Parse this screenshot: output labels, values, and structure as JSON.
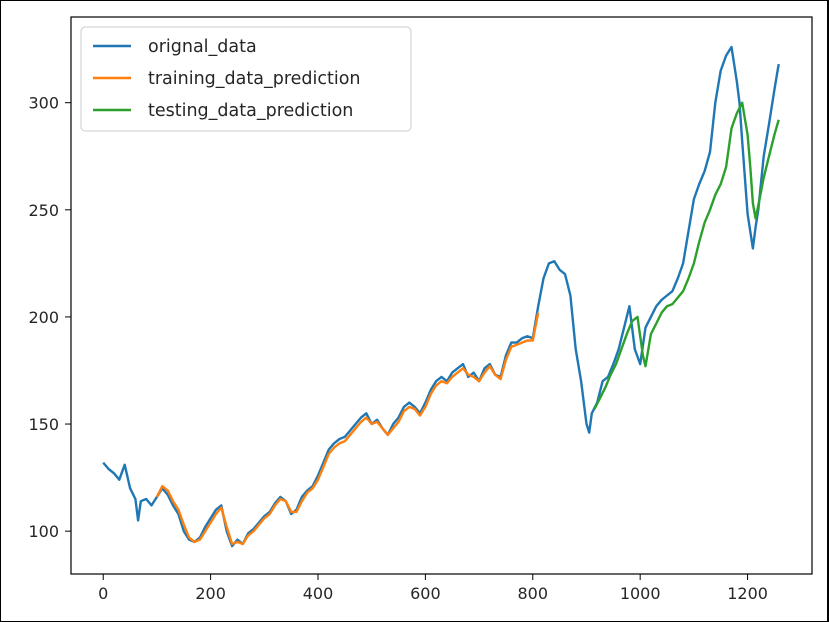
{
  "chart_data": {
    "type": "line",
    "title": "",
    "xlabel": "",
    "ylabel": "",
    "xlim": [
      -60,
      1320
    ],
    "ylim": [
      80,
      340
    ],
    "xticks": [
      0,
      200,
      400,
      600,
      800,
      1000,
      1200
    ],
    "yticks": [
      100,
      150,
      200,
      250,
      300
    ],
    "grid": false,
    "legend_position": "top-left",
    "series": [
      {
        "name": "orignal_data",
        "color": "#1f77b4",
        "x": [
          0,
          10,
          20,
          30,
          40,
          50,
          60,
          65,
          70,
          80,
          90,
          100,
          110,
          120,
          130,
          140,
          150,
          160,
          170,
          180,
          190,
          200,
          210,
          220,
          230,
          240,
          250,
          260,
          270,
          280,
          290,
          300,
          310,
          320,
          330,
          340,
          350,
          360,
          370,
          380,
          390,
          400,
          410,
          420,
          430,
          440,
          450,
          460,
          470,
          480,
          490,
          500,
          510,
          520,
          530,
          540,
          550,
          560,
          570,
          580,
          590,
          600,
          610,
          620,
          630,
          640,
          650,
          660,
          670,
          680,
          690,
          700,
          710,
          720,
          730,
          740,
          750,
          760,
          770,
          780,
          790,
          800,
          810,
          820,
          830,
          840,
          850,
          860,
          870,
          880,
          890,
          900,
          905,
          910,
          920,
          930,
          940,
          950,
          960,
          970,
          980,
          990,
          1000,
          1010,
          1020,
          1030,
          1040,
          1050,
          1060,
          1070,
          1080,
          1090,
          1100,
          1110,
          1120,
          1130,
          1140,
          1150,
          1160,
          1170,
          1180,
          1185,
          1190,
          1200,
          1210,
          1215,
          1220,
          1230,
          1240,
          1250,
          1258
        ],
        "y": [
          132,
          129,
          127,
          124,
          131,
          120,
          115,
          105,
          114,
          115,
          112,
          116,
          120,
          117,
          112,
          108,
          100,
          96,
          95,
          97,
          102,
          106,
          110,
          112,
          100,
          93,
          96,
          94,
          99,
          101,
          104,
          107,
          109,
          113,
          116,
          114,
          108,
          110,
          116,
          119,
          121,
          126,
          132,
          138,
          141,
          143,
          144,
          147,
          150,
          153,
          155,
          150,
          152,
          148,
          145,
          150,
          153,
          158,
          160,
          158,
          155,
          160,
          166,
          170,
          172,
          170,
          174,
          176,
          178,
          172,
          174,
          170,
          176,
          178,
          173,
          172,
          182,
          188,
          188,
          190,
          191,
          190,
          205,
          218,
          225,
          226,
          222,
          220,
          210,
          185,
          170,
          150,
          146,
          155,
          160,
          170,
          172,
          178,
          185,
          195,
          205,
          185,
          178,
          195,
          200,
          205,
          208,
          210,
          212,
          218,
          225,
          240,
          255,
          262,
          268,
          277,
          300,
          315,
          322,
          326,
          310,
          300,
          282,
          248,
          232,
          242,
          250,
          275,
          290,
          306,
          318
        ]
      },
      {
        "name": "training_data_prediction",
        "color": "#ff7f0e",
        "x": [
          100,
          110,
          120,
          130,
          140,
          150,
          160,
          170,
          180,
          190,
          200,
          210,
          220,
          230,
          240,
          250,
          260,
          270,
          280,
          290,
          300,
          310,
          320,
          330,
          340,
          350,
          360,
          370,
          380,
          390,
          400,
          410,
          420,
          430,
          440,
          450,
          460,
          470,
          480,
          490,
          500,
          510,
          520,
          530,
          540,
          550,
          560,
          570,
          580,
          590,
          600,
          610,
          620,
          630,
          640,
          650,
          660,
          670,
          680,
          690,
          700,
          710,
          720,
          730,
          740,
          750,
          760,
          770,
          780,
          790,
          800,
          810
        ],
        "y": [
          116,
          121,
          119,
          114,
          110,
          103,
          97,
          95,
          96,
          100,
          104,
          108,
          111,
          102,
          94,
          95,
          94,
          98,
          100,
          103,
          106,
          108,
          112,
          115,
          114,
          109,
          109,
          114,
          118,
          120,
          124,
          130,
          136,
          139,
          141,
          142,
          145,
          148,
          151,
          153,
          150,
          151,
          148,
          145,
          148,
          151,
          156,
          158,
          157,
          154,
          158,
          164,
          168,
          170,
          169,
          172,
          174,
          176,
          173,
          172,
          170,
          174,
          177,
          173,
          171,
          180,
          186,
          187,
          188,
          189,
          189,
          202
        ]
      },
      {
        "name": "testing_data_prediction",
        "color": "#2ca02c",
        "x": [
          915,
          925,
          935,
          945,
          955,
          965,
          975,
          985,
          995,
          1005,
          1010,
          1020,
          1030,
          1040,
          1050,
          1060,
          1070,
          1080,
          1090,
          1100,
          1110,
          1120,
          1130,
          1140,
          1150,
          1160,
          1170,
          1180,
          1190,
          1200,
          1205,
          1210,
          1215,
          1220,
          1230,
          1240,
          1250,
          1258
        ],
        "y": [
          157,
          162,
          167,
          173,
          178,
          185,
          192,
          198,
          200,
          182,
          177,
          192,
          197,
          202,
          205,
          206,
          209,
          212,
          218,
          225,
          235,
          244,
          250,
          257,
          262,
          270,
          288,
          295,
          300,
          285,
          270,
          253,
          246,
          252,
          265,
          275,
          285,
          292
        ]
      }
    ]
  }
}
